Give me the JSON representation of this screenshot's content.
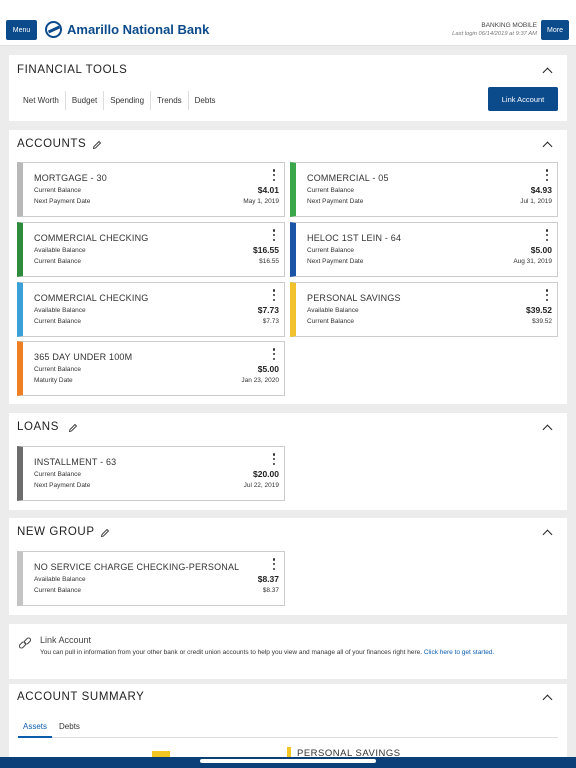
{
  "header": {
    "menu_label": "Menu",
    "bank_name": "Amarillo National Bank",
    "app_label": "BANKING MOBILE",
    "last_login": "Last login 06/14/2019 at 9:37 AM",
    "more_label": "More"
  },
  "financial_tools": {
    "title": "FINANCIAL TOOLS",
    "tabs": [
      "Net Worth",
      "Budget",
      "Spending",
      "Trends",
      "Debts"
    ],
    "link_account_button": "Link Account"
  },
  "accounts": {
    "title": "ACCOUNTS",
    "items": [
      {
        "name": "MORTGAGE - 30",
        "label1": "Current Balance",
        "value1": "$4.01",
        "label2": "Next Payment Date",
        "value2": "May 1, 2019",
        "color": "#b8b8b8"
      },
      {
        "name": "COMMERCIAL - 05",
        "label1": "Current Balance",
        "value1": "$4.93",
        "label2": "Next Payment Date",
        "value2": "Jul 1, 2019",
        "color": "#3aa84a"
      },
      {
        "name": "COMMERCIAL CHECKING",
        "label1": "Available Balance",
        "value1": "$16.55",
        "label2": "Current Balance",
        "value2": "$16.55",
        "color": "#2e8b3e"
      },
      {
        "name": "HELOC 1ST LEIN - 64",
        "label1": "Current Balance",
        "value1": "$5.00",
        "label2": "Next Payment Date",
        "value2": "Aug 31, 2019",
        "color": "#1c55a8"
      },
      {
        "name": "COMMERCIAL CHECKING",
        "label1": "Available Balance",
        "value1": "$7.73",
        "label2": "Current Balance",
        "value2": "$7.73",
        "color": "#3b9fd8"
      },
      {
        "name": "PERSONAL SAVINGS",
        "label1": "Available Balance",
        "value1": "$39.52",
        "label2": "Current Balance",
        "value2": "$39.52",
        "color": "#f2c12e"
      },
      {
        "name": "365 DAY UNDER 100M",
        "label1": "Current Balance",
        "value1": "$5.00",
        "label2": "Maturity Date",
        "value2": "Jan 23, 2020",
        "color": "#ef7f25"
      }
    ]
  },
  "loans": {
    "title": "LOANS",
    "items": [
      {
        "name": "INSTALLMENT - 63",
        "label1": "Current Balance",
        "value1": "$20.00",
        "label2": "Next Payment Date",
        "value2": "Jul 22, 2019",
        "color": "#6c6c6c"
      }
    ]
  },
  "new_group": {
    "title": "NEW GROUP",
    "items": [
      {
        "name": "NO SERVICE CHARGE CHECKING-PERSONAL",
        "label1": "Available Balance",
        "value1": "$8.37",
        "label2": "Current Balance",
        "value2": "$8.37",
        "color": "#c4c4c4"
      }
    ]
  },
  "link_note": {
    "title": "Link Account",
    "text": "You can pull in information from your other bank or credit union accounts to help you view and manage all of your finances right here.",
    "link_text": "Click here to get started."
  },
  "account_summary": {
    "title": "ACCOUNT SUMMARY",
    "tabs": [
      "Assets",
      "Debts"
    ],
    "active_tab": "Assets",
    "peek_label": "PERSONAL SAVINGS"
  }
}
